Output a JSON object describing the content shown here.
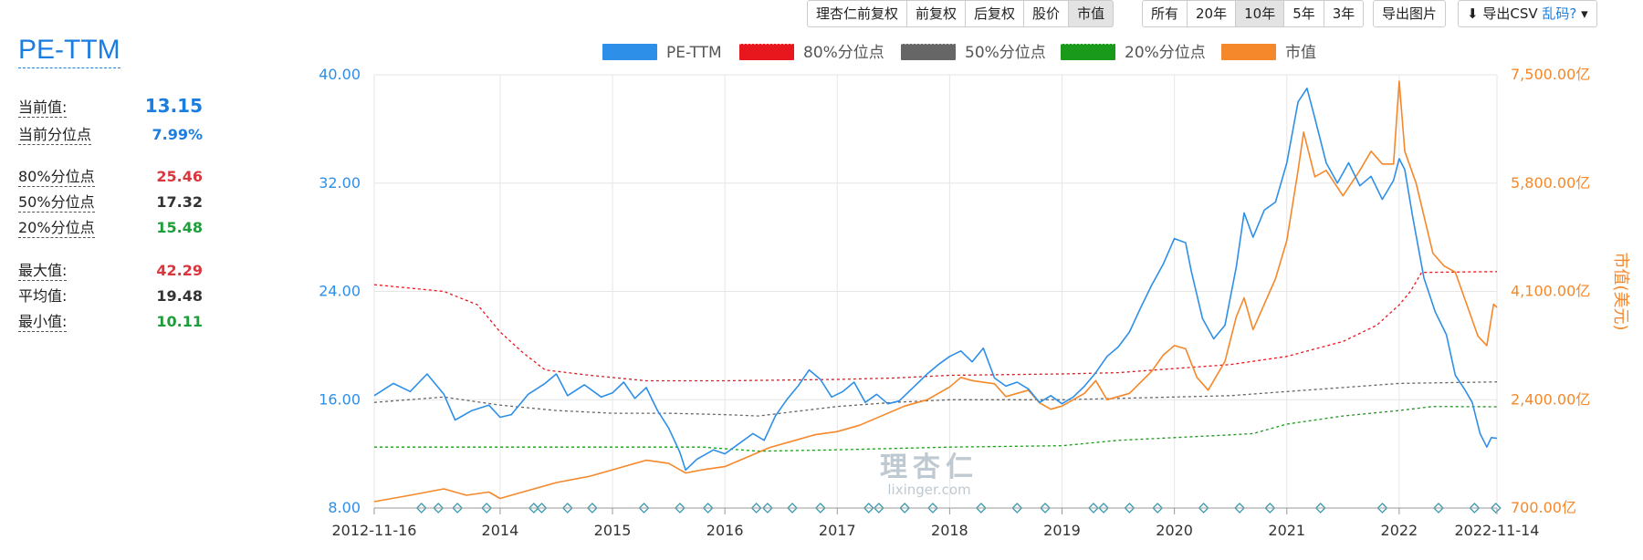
{
  "title": "PE-TTM",
  "stats": [
    {
      "label": "当前值:",
      "value": "13.15",
      "color": "#1a7de0",
      "big": true,
      "dashed": true
    },
    {
      "label": "当前分位点",
      "value": "7.99%",
      "color": "#1a7de0",
      "dashed": true
    },
    {
      "label": "80%分位点",
      "value": "25.46",
      "color": "#d9363e",
      "dashed": true
    },
    {
      "label": "50%分位点",
      "value": "17.32",
      "color": "#333333",
      "dashed": true
    },
    {
      "label": "20%分位点",
      "value": "15.48",
      "color": "#1e9e3a",
      "dashed": true
    },
    {
      "label": "最大值:",
      "value": "42.29",
      "color": "#d9363e",
      "dashed": true
    },
    {
      "label": "平均值:",
      "value": "19.48",
      "color": "#333333",
      "dashed": false
    },
    {
      "label": "最小值:",
      "value": "10.11",
      "color": "#1e9e3a",
      "dashed": true
    }
  ],
  "toolbar": {
    "adjust": [
      "理杏仁前复权",
      "前复权",
      "后复权",
      "股价",
      "市值"
    ],
    "adjust_active": "市值",
    "range": [
      "所有",
      "20年",
      "10年",
      "5年",
      "3年"
    ],
    "range_active": "10年",
    "export_image": "导出图片",
    "export_csv": "导出CSV",
    "garbled": "乱码?"
  },
  "watermark": {
    "cn": "理杏仁",
    "en": "lixinger.com"
  },
  "chart_data": {
    "type": "line",
    "x_start": "2012-11-16",
    "x_end": "2022-11-14",
    "x_ticks": [
      "2012-11-16",
      "2014",
      "2015",
      "2016",
      "2017",
      "2018",
      "2019",
      "2020",
      "2021",
      "2022",
      "2022-11-14"
    ],
    "y_left": {
      "ticks": [
        "8.00",
        "16.00",
        "24.00",
        "32.00",
        "40.00"
      ],
      "range": [
        8,
        40
      ]
    },
    "y_right": {
      "label": "市值(美元)",
      "ticks": [
        "700.00亿",
        "2,400.00亿",
        "4,100.00亿",
        "5,800.00亿",
        "7,500.00亿"
      ],
      "range": [
        700,
        7500
      ]
    },
    "legend": [
      "PE-TTM",
      "80%分位点",
      "50%分位点",
      "20%分位点",
      "市值"
    ],
    "colors": {
      "pe": "#2e8fe8",
      "p80": "#e8161d",
      "p50": "#666666",
      "p20": "#1a9a1a",
      "mv": "#f5882a"
    },
    "series": [
      {
        "name": "PE-TTM",
        "axis": "left",
        "points": [
          [
            2012.88,
            16.3
          ],
          [
            2013.05,
            17.2
          ],
          [
            2013.2,
            16.6
          ],
          [
            2013.35,
            17.9
          ],
          [
            2013.5,
            16.4
          ],
          [
            2013.6,
            14.5
          ],
          [
            2013.75,
            15.2
          ],
          [
            2013.9,
            15.6
          ],
          [
            2014.0,
            14.7
          ],
          [
            2014.1,
            14.9
          ],
          [
            2014.25,
            16.4
          ],
          [
            2014.4,
            17.2
          ],
          [
            2014.5,
            17.9
          ],
          [
            2014.6,
            16.3
          ],
          [
            2014.75,
            17.1
          ],
          [
            2014.9,
            16.2
          ],
          [
            2015.0,
            16.5
          ],
          [
            2015.1,
            17.3
          ],
          [
            2015.2,
            16.1
          ],
          [
            2015.3,
            16.9
          ],
          [
            2015.4,
            15.2
          ],
          [
            2015.5,
            13.9
          ],
          [
            2015.6,
            12.1
          ],
          [
            2015.65,
            10.8
          ],
          [
            2015.75,
            11.6
          ],
          [
            2015.9,
            12.3
          ],
          [
            2016.0,
            12.0
          ],
          [
            2016.1,
            12.6
          ],
          [
            2016.25,
            13.5
          ],
          [
            2016.35,
            13.0
          ],
          [
            2016.45,
            14.8
          ],
          [
            2016.55,
            16.0
          ],
          [
            2016.65,
            17.0
          ],
          [
            2016.75,
            18.2
          ],
          [
            2016.85,
            17.5
          ],
          [
            2016.95,
            16.2
          ],
          [
            2017.05,
            16.6
          ],
          [
            2017.15,
            17.3
          ],
          [
            2017.25,
            15.8
          ],
          [
            2017.35,
            16.4
          ],
          [
            2017.45,
            15.7
          ],
          [
            2017.55,
            15.9
          ],
          [
            2017.7,
            17.1
          ],
          [
            2017.8,
            17.9
          ],
          [
            2017.9,
            18.6
          ],
          [
            2018.0,
            19.2
          ],
          [
            2018.1,
            19.6
          ],
          [
            2018.2,
            18.8
          ],
          [
            2018.3,
            19.8
          ],
          [
            2018.4,
            17.6
          ],
          [
            2018.5,
            17.0
          ],
          [
            2018.6,
            17.3
          ],
          [
            2018.7,
            16.8
          ],
          [
            2018.8,
            15.8
          ],
          [
            2018.9,
            16.3
          ],
          [
            2019.0,
            15.7
          ],
          [
            2019.1,
            16.2
          ],
          [
            2019.2,
            17.0
          ],
          [
            2019.3,
            18.0
          ],
          [
            2019.4,
            19.2
          ],
          [
            2019.5,
            19.9
          ],
          [
            2019.6,
            21.0
          ],
          [
            2019.7,
            22.8
          ],
          [
            2019.8,
            24.5
          ],
          [
            2019.9,
            26.0
          ],
          [
            2020.0,
            27.9
          ],
          [
            2020.1,
            27.6
          ],
          [
            2020.15,
            25.5
          ],
          [
            2020.25,
            22.0
          ],
          [
            2020.35,
            20.5
          ],
          [
            2020.45,
            21.5
          ],
          [
            2020.55,
            25.8
          ],
          [
            2020.62,
            29.8
          ],
          [
            2020.7,
            28.0
          ],
          [
            2020.8,
            30.0
          ],
          [
            2020.9,
            30.6
          ],
          [
            2021.0,
            33.5
          ],
          [
            2021.1,
            38.0
          ],
          [
            2021.18,
            39.0
          ],
          [
            2021.25,
            36.8
          ],
          [
            2021.35,
            33.5
          ],
          [
            2021.45,
            32.0
          ],
          [
            2021.55,
            33.5
          ],
          [
            2021.65,
            31.8
          ],
          [
            2021.75,
            32.5
          ],
          [
            2021.85,
            30.8
          ],
          [
            2021.95,
            32.2
          ],
          [
            2022.0,
            33.8
          ],
          [
            2022.05,
            33.0
          ],
          [
            2022.12,
            29.5
          ],
          [
            2022.22,
            25.0
          ],
          [
            2022.32,
            22.5
          ],
          [
            2022.42,
            20.8
          ],
          [
            2022.5,
            17.8
          ],
          [
            2022.58,
            16.8
          ],
          [
            2022.65,
            15.8
          ],
          [
            2022.72,
            13.5
          ],
          [
            2022.78,
            12.5
          ],
          [
            2022.82,
            13.2
          ],
          [
            2022.87,
            13.15
          ]
        ]
      },
      {
        "name": "80%分位点",
        "axis": "left",
        "points": [
          [
            2012.88,
            24.5
          ],
          [
            2013.5,
            24.0
          ],
          [
            2013.8,
            23.0
          ],
          [
            2014.0,
            21.0
          ],
          [
            2014.2,
            19.5
          ],
          [
            2014.4,
            18.2
          ],
          [
            2014.8,
            17.8
          ],
          [
            2015.3,
            17.4
          ],
          [
            2016.0,
            17.4
          ],
          [
            2017.0,
            17.5
          ],
          [
            2017.5,
            17.6
          ],
          [
            2018.0,
            17.8
          ],
          [
            2019.0,
            17.9
          ],
          [
            2019.5,
            18.0
          ],
          [
            2020.0,
            18.3
          ],
          [
            2020.5,
            18.6
          ],
          [
            2021.0,
            19.2
          ],
          [
            2021.5,
            20.3
          ],
          [
            2021.8,
            21.5
          ],
          [
            2022.0,
            23.0
          ],
          [
            2022.1,
            24.0
          ],
          [
            2022.2,
            25.4
          ],
          [
            2022.87,
            25.46
          ]
        ]
      },
      {
        "name": "50%分位点",
        "axis": "left",
        "points": [
          [
            2012.88,
            15.8
          ],
          [
            2013.5,
            16.2
          ],
          [
            2014.0,
            15.6
          ],
          [
            2014.5,
            15.2
          ],
          [
            2015.0,
            15.0
          ],
          [
            2015.5,
            15.0
          ],
          [
            2016.0,
            14.9
          ],
          [
            2016.3,
            14.8
          ],
          [
            2016.7,
            15.2
          ],
          [
            2017.0,
            15.5
          ],
          [
            2017.5,
            15.8
          ],
          [
            2018.0,
            16.0
          ],
          [
            2019.0,
            16.0
          ],
          [
            2019.5,
            16.1
          ],
          [
            2020.0,
            16.2
          ],
          [
            2020.5,
            16.3
          ],
          [
            2021.0,
            16.6
          ],
          [
            2021.5,
            16.9
          ],
          [
            2022.0,
            17.2
          ],
          [
            2022.87,
            17.32
          ]
        ]
      },
      {
        "name": "20%分位点",
        "axis": "left",
        "points": [
          [
            2012.88,
            12.5
          ],
          [
            2014.0,
            12.5
          ],
          [
            2015.0,
            12.5
          ],
          [
            2015.8,
            12.5
          ],
          [
            2016.3,
            12.2
          ],
          [
            2017.0,
            12.3
          ],
          [
            2018.0,
            12.5
          ],
          [
            2019.0,
            12.6
          ],
          [
            2019.5,
            13.0
          ],
          [
            2020.0,
            13.2
          ],
          [
            2020.5,
            13.4
          ],
          [
            2020.7,
            13.5
          ],
          [
            2021.0,
            14.2
          ],
          [
            2021.5,
            14.8
          ],
          [
            2022.0,
            15.2
          ],
          [
            2022.3,
            15.5
          ],
          [
            2022.87,
            15.48
          ]
        ]
      },
      {
        "name": "市值",
        "axis": "right",
        "points": [
          [
            2012.88,
            800
          ],
          [
            2013.2,
            900
          ],
          [
            2013.5,
            1000
          ],
          [
            2013.7,
            900
          ],
          [
            2013.9,
            950
          ],
          [
            2014.0,
            850
          ],
          [
            2014.2,
            950
          ],
          [
            2014.5,
            1100
          ],
          [
            2014.8,
            1200
          ],
          [
            2015.0,
            1300
          ],
          [
            2015.3,
            1450
          ],
          [
            2015.5,
            1400
          ],
          [
            2015.65,
            1250
          ],
          [
            2015.8,
            1300
          ],
          [
            2016.0,
            1350
          ],
          [
            2016.2,
            1500
          ],
          [
            2016.4,
            1650
          ],
          [
            2016.6,
            1750
          ],
          [
            2016.8,
            1850
          ],
          [
            2017.0,
            1900
          ],
          [
            2017.2,
            2000
          ],
          [
            2017.4,
            2150
          ],
          [
            2017.6,
            2300
          ],
          [
            2017.8,
            2400
          ],
          [
            2018.0,
            2600
          ],
          [
            2018.1,
            2750
          ],
          [
            2018.2,
            2700
          ],
          [
            2018.4,
            2650
          ],
          [
            2018.5,
            2450
          ],
          [
            2018.7,
            2550
          ],
          [
            2018.8,
            2350
          ],
          [
            2018.9,
            2250
          ],
          [
            2019.0,
            2300
          ],
          [
            2019.2,
            2500
          ],
          [
            2019.3,
            2700
          ],
          [
            2019.4,
            2400
          ],
          [
            2019.6,
            2500
          ],
          [
            2019.8,
            2850
          ],
          [
            2019.9,
            3100
          ],
          [
            2020.0,
            3250
          ],
          [
            2020.1,
            3200
          ],
          [
            2020.2,
            2750
          ],
          [
            2020.3,
            2550
          ],
          [
            2020.45,
            3000
          ],
          [
            2020.55,
            3700
          ],
          [
            2020.62,
            4000
          ],
          [
            2020.7,
            3500
          ],
          [
            2020.8,
            3900
          ],
          [
            2020.9,
            4300
          ],
          [
            2021.0,
            4900
          ],
          [
            2021.1,
            6000
          ],
          [
            2021.15,
            6600
          ],
          [
            2021.25,
            5900
          ],
          [
            2021.35,
            6000
          ],
          [
            2021.5,
            5600
          ],
          [
            2021.65,
            6000
          ],
          [
            2021.75,
            6300
          ],
          [
            2021.85,
            6100
          ],
          [
            2021.95,
            6100
          ],
          [
            2022.0,
            7400
          ],
          [
            2022.05,
            6300
          ],
          [
            2022.15,
            5800
          ],
          [
            2022.3,
            4700
          ],
          [
            2022.4,
            4500
          ],
          [
            2022.5,
            4400
          ],
          [
            2022.6,
            3900
          ],
          [
            2022.7,
            3400
          ],
          [
            2022.78,
            3250
          ],
          [
            2022.84,
            3900
          ],
          [
            2022.87,
            3850
          ]
        ]
      }
    ],
    "event_markers": [
      2013.3,
      2013.45,
      2013.62,
      2013.88,
      2014.3,
      2014.37,
      2014.6,
      2014.82,
      2015.28,
      2015.6,
      2015.85,
      2016.28,
      2016.38,
      2016.6,
      2016.85,
      2017.28,
      2017.37,
      2017.6,
      2017.85,
      2018.28,
      2018.6,
      2018.85,
      2019.28,
      2019.37,
      2019.6,
      2019.85,
      2020.26,
      2020.58,
      2020.85,
      2021.3,
      2021.85,
      2022.35,
      2022.67,
      2022.86
    ]
  }
}
